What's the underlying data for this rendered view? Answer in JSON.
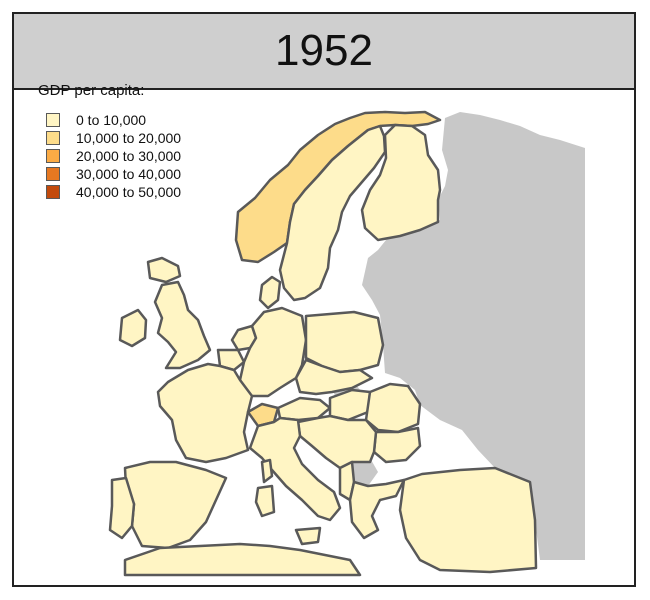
{
  "title": "1952",
  "legend": {
    "title": "GDP per capita:",
    "items": [
      {
        "label": "0 to 10,000",
        "color": "#fff5c4"
      },
      {
        "label": "10,000 to 20,000",
        "color": "#fddc8a"
      },
      {
        "label": "20,000 to 30,000",
        "color": "#fbab45"
      },
      {
        "label": "30,000 to 40,000",
        "color": "#e67821"
      },
      {
        "label": "40,000 to 50,000",
        "color": "#c24a0c"
      }
    ]
  },
  "colors": {
    "frame": "#222222",
    "title_bg": "#cfcfcf",
    "border": "#595959",
    "no_data": "#c8c8c8"
  },
  "map": {
    "countries": [
      {
        "name": "norway",
        "gdp_class": 1
      },
      {
        "name": "sweden",
        "gdp_class": 0
      },
      {
        "name": "finland",
        "gdp_class": 0
      },
      {
        "name": "denmark",
        "gdp_class": 0
      },
      {
        "name": "ireland",
        "gdp_class": 0
      },
      {
        "name": "united-kingdom",
        "gdp_class": 0
      },
      {
        "name": "netherlands",
        "gdp_class": 0
      },
      {
        "name": "belgium",
        "gdp_class": 0
      },
      {
        "name": "france",
        "gdp_class": 0
      },
      {
        "name": "switzerland",
        "gdp_class": 1
      },
      {
        "name": "germany",
        "gdp_class": 0
      },
      {
        "name": "poland",
        "gdp_class": 0
      },
      {
        "name": "czechoslovakia",
        "gdp_class": 0
      },
      {
        "name": "austria",
        "gdp_class": 0
      },
      {
        "name": "hungary",
        "gdp_class": 0
      },
      {
        "name": "romania",
        "gdp_class": 0
      },
      {
        "name": "bulgaria",
        "gdp_class": 0
      },
      {
        "name": "yugoslavia",
        "gdp_class": 0
      },
      {
        "name": "albania",
        "gdp_class": 0
      },
      {
        "name": "greece",
        "gdp_class": 0
      },
      {
        "name": "turkey",
        "gdp_class": 0
      },
      {
        "name": "italy",
        "gdp_class": 0
      },
      {
        "name": "spain",
        "gdp_class": 0
      },
      {
        "name": "portugal",
        "gdp_class": 0
      },
      {
        "name": "iceland",
        "gdp_class": 0
      },
      {
        "name": "north-africa",
        "gdp_class": 0
      },
      {
        "name": "sardinia",
        "gdp_class": 0
      },
      {
        "name": "sicily",
        "gdp_class": 0
      },
      {
        "name": "corsica",
        "gdp_class": 0
      }
    ]
  }
}
